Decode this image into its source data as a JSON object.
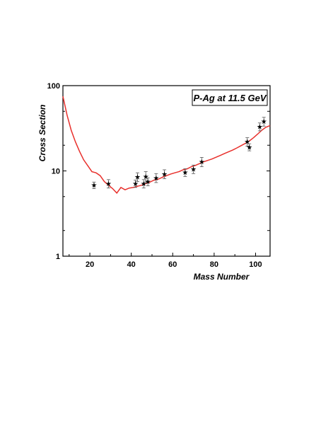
{
  "chart_data": {
    "type": "scatter",
    "title": "",
    "legend_label": "P-Ag at 11.5 GeV",
    "legend_position": "top-right",
    "xlabel": "Mass Number",
    "ylabel": "Cross Section",
    "xlim": [
      7,
      107
    ],
    "ylim": [
      1,
      100
    ],
    "y_scale": "log",
    "x_ticks": [
      20,
      40,
      60,
      80,
      100
    ],
    "x_tick_labels": [
      "20",
      "40",
      "60",
      "80",
      "100"
    ],
    "y_ticks": [
      1,
      10,
      100
    ],
    "y_tick_labels": [
      "1",
      "10",
      "100"
    ],
    "grid": false,
    "line_color": "#e8302c",
    "point_color": "#000000",
    "series": [
      {
        "type": "line",
        "x": [
          7,
          9,
          11,
          13,
          15,
          17,
          19,
          21,
          23,
          25,
          27,
          29,
          31,
          33,
          35,
          37,
          39,
          41,
          43,
          45,
          47,
          49,
          51,
          53,
          55,
          57,
          59,
          61,
          63,
          65,
          67,
          69,
          71,
          73,
          75,
          77,
          79,
          81,
          83,
          85,
          87,
          89,
          91,
          93,
          95,
          97,
          99,
          101,
          103,
          105,
          107
        ],
        "y": [
          75,
          45,
          30,
          22,
          17,
          13.5,
          11.5,
          9.8,
          9.5,
          8.8,
          7.5,
          6.8,
          6.2,
          5.5,
          6.4,
          6.0,
          6.3,
          6.4,
          6.6,
          6.8,
          7.1,
          7.4,
          7.8,
          8.0,
          8.4,
          8.8,
          9.2,
          9.5,
          9.8,
          10.3,
          10.6,
          11.2,
          11.6,
          12.2,
          12.8,
          13.3,
          13.8,
          14.5,
          15.2,
          16.0,
          16.8,
          17.6,
          18.6,
          19.8,
          21.0,
          22.5,
          24.5,
          27.0,
          30.0,
          32.5,
          34.0
        ]
      },
      {
        "type": "scatter",
        "x": [
          22,
          29,
          42,
          43,
          46,
          47,
          48,
          52,
          56,
          66,
          70,
          74,
          96,
          97,
          102,
          104
        ],
        "y": [
          6.8,
          7.1,
          7.1,
          8.5,
          7.1,
          8.6,
          7.5,
          8.3,
          9.2,
          9.6,
          10.5,
          12.8,
          22.0,
          19.0,
          33.0,
          38.0
        ],
        "yerr": [
          0.6,
          0.8,
          0.7,
          1.0,
          0.8,
          1.2,
          0.8,
          1.0,
          1.1,
          1.0,
          1.2,
          1.6,
          2.5,
          1.8,
          3.5,
          4.5
        ]
      }
    ]
  }
}
